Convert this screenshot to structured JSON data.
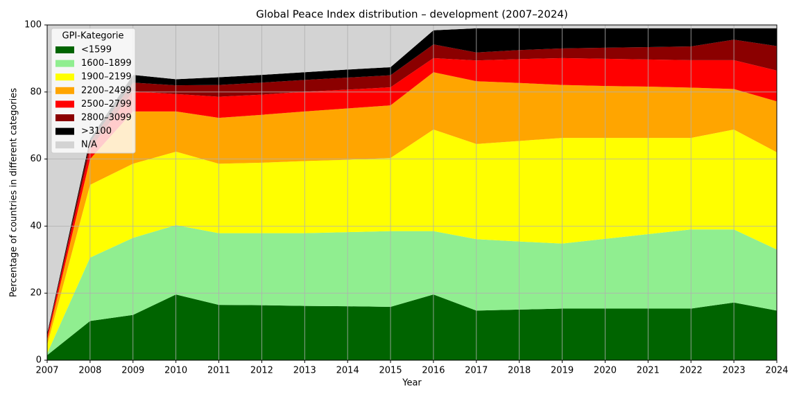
{
  "chart_data": {
    "type": "stacked_area",
    "title": "Global Peace Index distribution – development (2007–2024)",
    "x_label": "Year",
    "y_label": "Percentage of countries in different categories",
    "x": [
      2007,
      2008,
      2009,
      2010,
      2011,
      2012,
      2013,
      2014,
      2015,
      2016,
      2017,
      2018,
      2019,
      2020,
      2021,
      2022,
      2023,
      2024
    ],
    "xlim": [
      2007,
      2024
    ],
    "xticks": [
      2007,
      2008,
      2009,
      2010,
      2011,
      2012,
      2013,
      2014,
      2015,
      2016,
      2017,
      2018,
      2019,
      2020,
      2021,
      2022,
      2023,
      2024
    ],
    "ylim": [
      0,
      100
    ],
    "yticks": [
      0,
      20,
      40,
      60,
      80,
      100
    ],
    "grid": true,
    "legend_title": "GPI-Kategorie",
    "legend_position": "upper-left",
    "series": [
      {
        "name": "<1599",
        "color": "#006400",
        "values": [
          1.5,
          11.7,
          13.5,
          19.6,
          16.5,
          16.4,
          16.2,
          16.1,
          15.9,
          19.6,
          14.8,
          15.1,
          15.4,
          15.4,
          15.4,
          15.4,
          17.2,
          14.8
        ]
      },
      {
        "name": "1600–1899",
        "color": "#90ee90",
        "values": [
          0.5,
          18.9,
          23.0,
          20.7,
          21.4,
          21.5,
          21.7,
          22.1,
          22.6,
          18.9,
          21.3,
          20.3,
          19.4,
          20.8,
          22.2,
          23.6,
          21.8,
          18.2
        ]
      },
      {
        "name": "1900–2199",
        "color": "#ffff00",
        "values": [
          2.5,
          21.7,
          22.1,
          21.9,
          20.7,
          21.0,
          21.5,
          21.6,
          21.8,
          30.3,
          28.4,
          30.0,
          31.5,
          30.1,
          28.7,
          27.3,
          29.8,
          29.0
        ]
      },
      {
        "name": "2200–2499",
        "color": "#ffa500",
        "values": [
          1.5,
          7.7,
          15.6,
          12.0,
          13.7,
          14.3,
          14.8,
          15.3,
          15.7,
          17.1,
          18.7,
          17.3,
          15.8,
          15.5,
          15.3,
          15.0,
          12.1,
          15.2
        ]
      },
      {
        "name": "2500–2799",
        "color": "#ff0000",
        "values": [
          1.0,
          3.0,
          6.0,
          5.2,
          6.3,
          6.0,
          5.9,
          5.6,
          5.4,
          4.2,
          6.2,
          7.1,
          8.0,
          8.1,
          8.1,
          8.2,
          8.6,
          9.2
        ]
      },
      {
        "name": "2800–3099",
        "color": "#8b0000",
        "values": [
          0.5,
          2.0,
          2.6,
          2.6,
          3.5,
          3.6,
          3.5,
          3.6,
          3.6,
          4.1,
          2.4,
          2.7,
          2.9,
          3.3,
          3.7,
          4.1,
          6.1,
          7.3
        ]
      },
      {
        "name": ">3100",
        "color": "#000000",
        "values": [
          0.5,
          1.0,
          2.3,
          1.8,
          2.3,
          2.3,
          2.3,
          2.4,
          2.4,
          4.2,
          7.2,
          6.5,
          6.0,
          5.8,
          5.6,
          5.4,
          3.4,
          5.3
        ]
      },
      {
        "name": "N/A",
        "color": "#d3d3d3",
        "values": [
          92.0,
          34.0,
          14.9,
          16.2,
          15.6,
          14.9,
          14.1,
          13.3,
          12.6,
          1.6,
          1.0,
          1.0,
          1.0,
          1.0,
          1.0,
          1.0,
          1.0,
          1.0
        ]
      }
    ]
  }
}
